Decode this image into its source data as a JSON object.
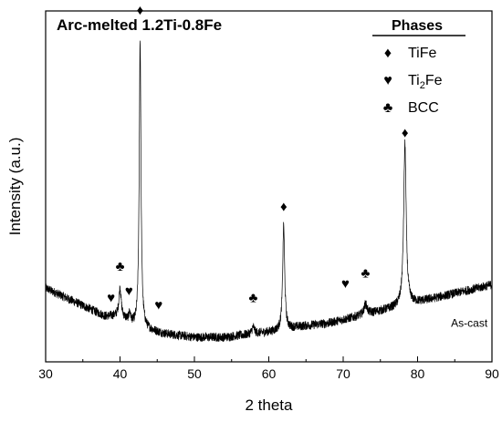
{
  "chart_data": {
    "type": "line",
    "title": "Arc-melted 1.2Ti-0.8Fe",
    "xlabel": "2 theta",
    "ylabel": "Intensity (a.u.)",
    "xlim": [
      30,
      90
    ],
    "ylim": [
      0,
      100
    ],
    "x_ticks": [
      30,
      40,
      50,
      60,
      70,
      80,
      90
    ],
    "y_ticks_labeled": false,
    "grid": false,
    "legend": {
      "title": "Phases",
      "placement": "top-right",
      "items": [
        {
          "symbol": "diamond",
          "glyph": "♦",
          "label": "TiFe"
        },
        {
          "symbol": "heart",
          "glyph": "♥",
          "label": "Ti",
          "sub": "2",
          "suffix": "Fe"
        },
        {
          "symbol": "club",
          "glyph": "♣",
          "label": "BCC"
        }
      ]
    },
    "annotations": [
      {
        "text": "As-cast",
        "x": 84.5,
        "y": 10
      }
    ],
    "baseline": [
      [
        30,
        21
      ],
      [
        32,
        19
      ],
      [
        34,
        17
      ],
      [
        36,
        15
      ],
      [
        38,
        13
      ],
      [
        40,
        13
      ],
      [
        42,
        10
      ],
      [
        44,
        9
      ],
      [
        46,
        8
      ],
      [
        48,
        7.5
      ],
      [
        50,
        7
      ],
      [
        52,
        7
      ],
      [
        54,
        7
      ],
      [
        56,
        7.5
      ],
      [
        58,
        8
      ],
      [
        60,
        8.5
      ],
      [
        62,
        9
      ],
      [
        64,
        10
      ],
      [
        66,
        10.5
      ],
      [
        68,
        11
      ],
      [
        70,
        12
      ],
      [
        72,
        13
      ],
      [
        74,
        14
      ],
      [
        76,
        15
      ],
      [
        78,
        16
      ],
      [
        80,
        17
      ],
      [
        82,
        18
      ],
      [
        84,
        19
      ],
      [
        86,
        20
      ],
      [
        88,
        21
      ],
      [
        90,
        22
      ]
    ],
    "peaks": [
      {
        "x": 40.0,
        "height": 8,
        "width": 0.18,
        "phase": "BCC"
      },
      {
        "x": 41.3,
        "height": 2.5,
        "width": 0.15,
        "phase": "Ti2Fe"
      },
      {
        "x": 42.7,
        "height": 82,
        "width": 0.14,
        "phase": "TiFe"
      },
      {
        "x": 57.9,
        "height": 2,
        "width": 0.2,
        "phase": "BCC"
      },
      {
        "x": 62.0,
        "height": 30,
        "width": 0.16,
        "phase": "TiFe"
      },
      {
        "x": 73.0,
        "height": 3,
        "width": 0.25,
        "phase": "BCC"
      },
      {
        "x": 78.3,
        "height": 46,
        "width": 0.2,
        "phase": "TiFe"
      }
    ],
    "phase_markers": [
      {
        "glyph": "♥",
        "phase": "Ti2Fe",
        "x": 38.8,
        "y": 17
      },
      {
        "glyph": "♣",
        "phase": "BCC",
        "x": 40.0,
        "y": 26
      },
      {
        "glyph": "♥",
        "phase": "Ti2Fe",
        "x": 41.2,
        "y": 19
      },
      {
        "glyph": "♦",
        "phase": "TiFe",
        "x": 42.7,
        "y": 99
      },
      {
        "glyph": "♥",
        "phase": "Ti2Fe",
        "x": 45.2,
        "y": 15
      },
      {
        "glyph": "♣",
        "phase": "BCC",
        "x": 57.9,
        "y": 17
      },
      {
        "glyph": "♦",
        "phase": "TiFe",
        "x": 62.0,
        "y": 43
      },
      {
        "glyph": "♥",
        "phase": "Ti2Fe",
        "x": 70.3,
        "y": 21
      },
      {
        "glyph": "♣",
        "phase": "BCC",
        "x": 73.0,
        "y": 24
      },
      {
        "glyph": "♦",
        "phase": "TiFe",
        "x": 78.3,
        "y": 64
      }
    ],
    "colors": {
      "line": "#000000",
      "background": "#ffffff"
    }
  }
}
